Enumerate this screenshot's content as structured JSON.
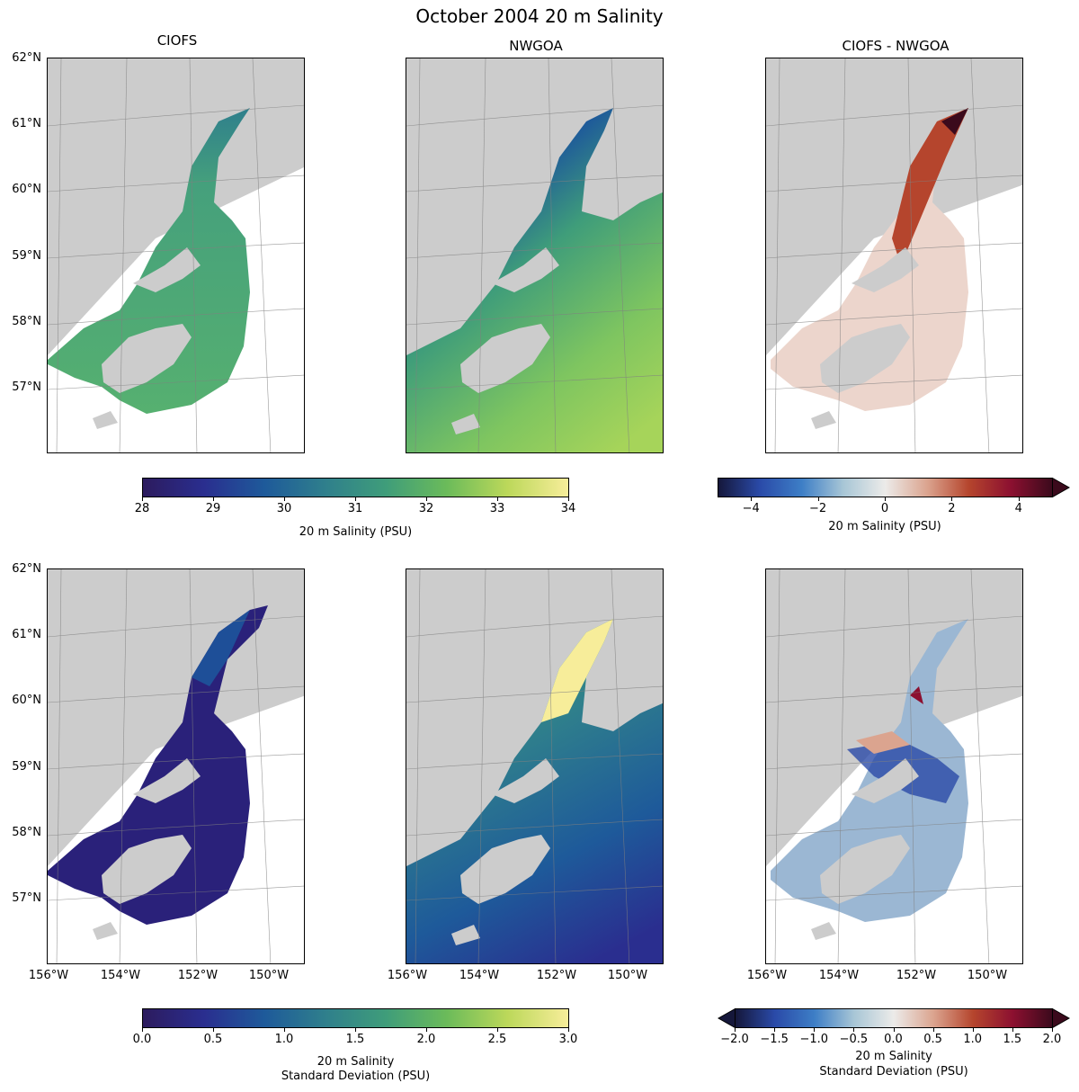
{
  "title": "October 2004 20 m Salinity",
  "panel_titles": [
    "CIOFS",
    "NWGOA",
    "CIOFS - NWGOA"
  ],
  "lat_labels": [
    "62°N",
    "61°N",
    "60°N",
    "59°N",
    "58°N",
    "57°N"
  ],
  "lon_labels": [
    "156°W",
    "154°W",
    "152°W",
    "150°W"
  ],
  "colorbars": {
    "salinity": {
      "ticks": [
        "28",
        "29",
        "30",
        "31",
        "32",
        "33",
        "34"
      ],
      "label": "20 m Salinity (PSU)",
      "colors": [
        "#2c1b5e",
        "#2a2e8f",
        "#1e5a9a",
        "#2f7f8c",
        "#3f9d7a",
        "#6bbb5a",
        "#bcd85a",
        "#f7ed9a"
      ]
    },
    "salinity_diff": {
      "ticks": [
        "−4",
        "−2",
        "0",
        "2",
        "4"
      ],
      "label": "20 m Salinity (PSU)",
      "colors": [
        "#15173a",
        "#2a4aa8",
        "#3d7ec6",
        "#a8c6d6",
        "#ecebe9",
        "#dba48f",
        "#b5452d",
        "#8c1030",
        "#3b0a1c"
      ]
    },
    "std": {
      "ticks": [
        "0.0",
        "0.5",
        "1.0",
        "1.5",
        "2.0",
        "2.5",
        "3.0"
      ],
      "label_line1": "20 m Salinity",
      "label_line2": "Standard Deviation (PSU)",
      "colors": [
        "#2c1b5e",
        "#2a2e8f",
        "#1e5a9a",
        "#2f7f8c",
        "#3f9d7a",
        "#6bbb5a",
        "#bcd85a",
        "#f7ed9a"
      ]
    },
    "std_diff": {
      "ticks": [
        "−2.0",
        "−1.5",
        "−1.0",
        "−0.5",
        "0.0",
        "0.5",
        "1.0",
        "1.5",
        "2.0"
      ],
      "label_line1": "20 m Salinity",
      "label_line2": "Standard Deviation (PSU)",
      "colors": [
        "#15173a",
        "#2a4aa8",
        "#3d7ec6",
        "#a8c6d6",
        "#ecebe9",
        "#dba48f",
        "#b5452d",
        "#8c1030",
        "#3b0a1c"
      ]
    }
  },
  "colors": {
    "land": "#cccccc",
    "ciofs_mean": "#4fa876",
    "nwgoa_mean_north": "#2a2e8f",
    "nwgoa_mean_south": "#9fd25a",
    "diff_mean": "#ecd5cc",
    "ciofs_std": "#2a217a",
    "nwgoa_std": "#2f7f8c",
    "std_diff": "#9bb7d3"
  }
}
